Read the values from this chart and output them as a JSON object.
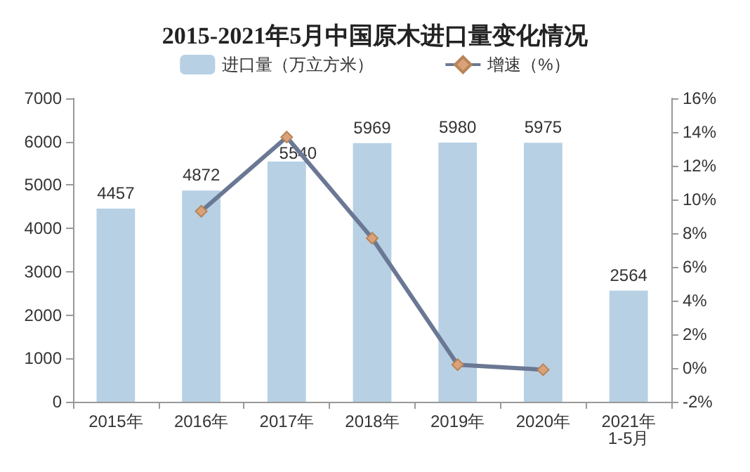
{
  "chart_data": {
    "type": "bar",
    "title": "2015-2021年5月中国原木进口量变化情况",
    "categories": [
      "2015年",
      "2016年",
      "2017年",
      "2018年",
      "2019年",
      "2020年",
      "2021年\n1-5月"
    ],
    "series": [
      {
        "name": "进口量（万立方米）",
        "type": "bar",
        "color": "#b7d0e4",
        "values": [
          4457,
          4872,
          5540,
          5969,
          5980,
          5975,
          2564
        ],
        "data_labels": true
      },
      {
        "name": "增速（%）",
        "type": "line",
        "axis": "y2",
        "color": "#6b7894",
        "marker": "diamond",
        "values": [
          null,
          9.3,
          13.7,
          7.7,
          0.2,
          -0.1,
          null
        ]
      }
    ],
    "ylim": [
      0,
      7000
    ],
    "yticks": [
      0,
      1000,
      2000,
      3000,
      4000,
      5000,
      6000,
      7000
    ],
    "y2lim": [
      -2,
      16
    ],
    "y2ticks": [
      {
        "value": -2,
        "label": "-2%"
      },
      {
        "value": 0,
        "label": "0%"
      },
      {
        "value": 2,
        "label": "2%"
      },
      {
        "value": 4,
        "label": "4%"
      },
      {
        "value": 6,
        "label": "6%"
      },
      {
        "value": 8,
        "label": "8%"
      },
      {
        "value": 10,
        "label": "10%"
      },
      {
        "value": 12,
        "label": "12%"
      },
      {
        "value": 14,
        "label": "14%"
      },
      {
        "value": 16,
        "label": "16%"
      }
    ],
    "legend": "top",
    "grid": false
  }
}
